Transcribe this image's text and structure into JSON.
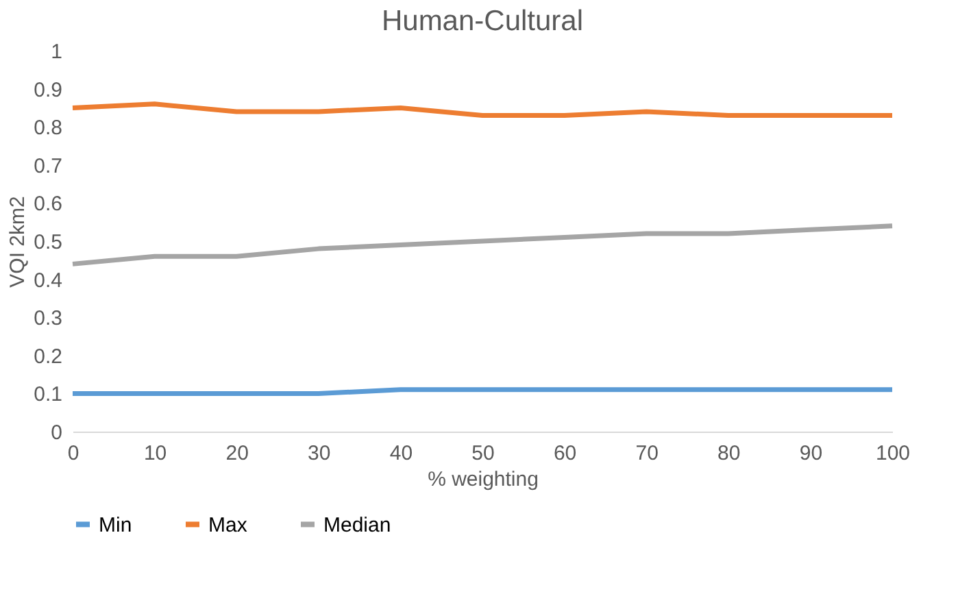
{
  "chart_data": {
    "type": "line",
    "title": "Human-Cultural",
    "xlabel": "% weighting",
    "ylabel": "VQI 2km2",
    "x": [
      0,
      10,
      20,
      30,
      40,
      50,
      60,
      70,
      80,
      90,
      100
    ],
    "series": [
      {
        "name": "Min",
        "color": "#5b9bd5",
        "values": [
          0.1,
          0.1,
          0.1,
          0.1,
          0.11,
          0.11,
          0.11,
          0.11,
          0.11,
          0.11,
          0.11
        ]
      },
      {
        "name": "Max",
        "color": "#ed7d31",
        "values": [
          0.85,
          0.86,
          0.84,
          0.84,
          0.85,
          0.83,
          0.83,
          0.84,
          0.83,
          0.83,
          0.83
        ]
      },
      {
        "name": "Median",
        "color": "#a5a5a5",
        "values": [
          0.44,
          0.46,
          0.46,
          0.48,
          0.49,
          0.5,
          0.51,
          0.52,
          0.52,
          0.53,
          0.54
        ]
      }
    ],
    "xlim": [
      0,
      100
    ],
    "xticks": [
      0,
      10,
      20,
      30,
      40,
      50,
      60,
      70,
      80,
      90,
      100
    ],
    "ylim": [
      0,
      1
    ],
    "yticks": [
      0,
      0.1,
      0.2,
      0.3,
      0.4,
      0.5,
      0.6,
      0.7,
      0.8,
      0.9,
      1
    ],
    "grid": false,
    "legend": "bottom",
    "marker": "none",
    "line_style": "solid"
  }
}
